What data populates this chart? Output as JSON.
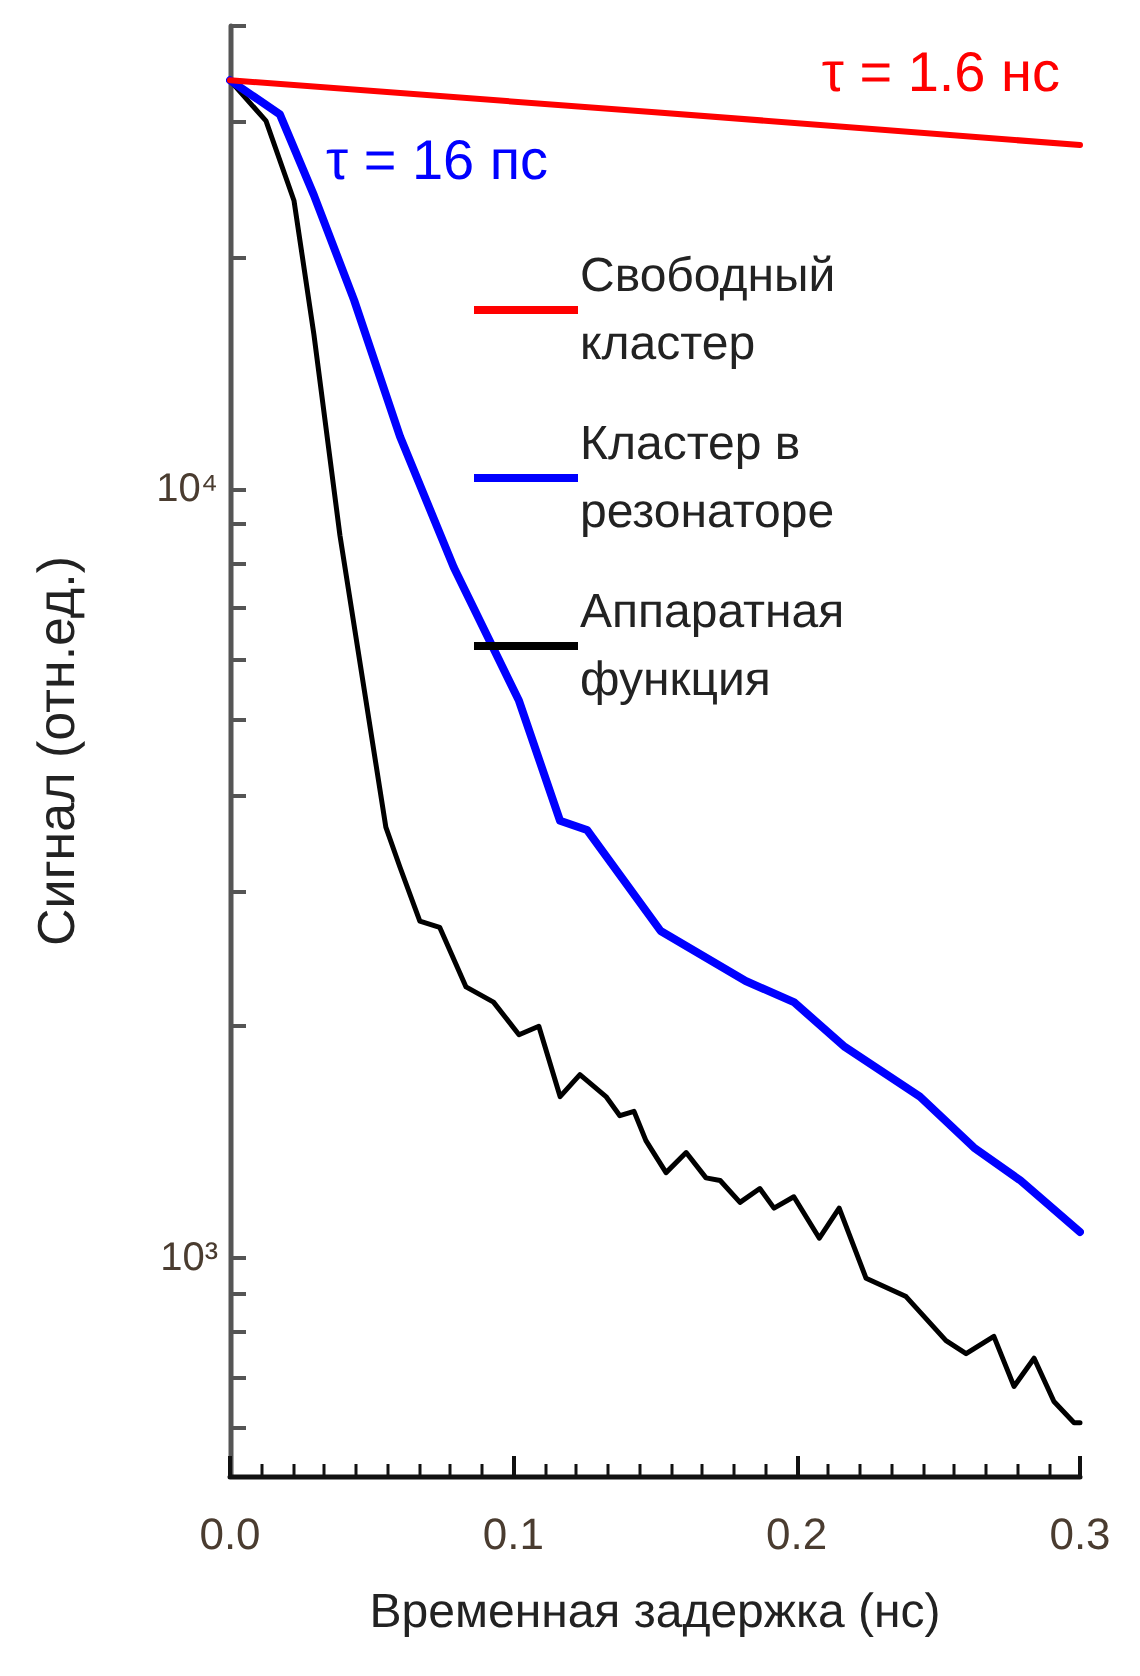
{
  "chart_data": {
    "type": "line",
    "xlabel": "Временная задержка (нс)",
    "ylabel": "Сигнал (отн.ед.)",
    "log": "y",
    "legend": "right",
    "grid": false,
    "marker": "none",
    "line_style": "solid",
    "xlim": [
      0,
      0.3
    ],
    "xticks": [
      {
        "value": 0,
        "label": "0.0"
      },
      0.1,
      0.2,
      0.3
    ],
    "ylim": [
      520,
      40000
    ],
    "yticks": [
      {
        "value": 600,
        "label": null
      },
      {
        "value": 700,
        "label": null
      },
      {
        "value": 800,
        "label": null
      },
      {
        "value": 900,
        "label": null
      },
      {
        "value": 1000,
        "label": "10³"
      },
      {
        "value": 2000,
        "label": null
      },
      {
        "value": 3000,
        "label": null
      },
      {
        "value": 4000,
        "label": null
      },
      {
        "value": 5000,
        "label": null
      },
      {
        "value": 6000,
        "label": null
      },
      {
        "value": 7000,
        "label": null
      },
      {
        "value": 8000,
        "label": null
      },
      {
        "value": 9000,
        "label": null
      },
      {
        "value": 10000,
        "label": "10⁴"
      },
      {
        "value": 20000,
        "label": null
      },
      {
        "value": 30000,
        "label": null
      },
      {
        "value": 40000,
        "label": null
      }
    ],
    "annotations": [
      "τ = 1.6 нс",
      "τ = 16 пс"
    ],
    "series": [
      {
        "name": "Свободный кластер",
        "color": "#ff0000",
        "x": [
          0,
          0.15,
          0.3
        ],
        "values": [
          34000,
          30900,
          28000
        ]
      },
      {
        "name": "Кластер в резонаторе",
        "color": "#0000ff",
        "x": [
          0,
          0.0176,
          0.0296,
          0.0438,
          0.06,
          0.079,
          0.102,
          0.1165,
          0.126,
          0.152,
          0.182,
          0.199,
          0.217,
          0.2435,
          0.2626,
          0.279,
          0.3
        ],
        "values": [
          34000,
          30700,
          24100,
          17600,
          11700,
          7900,
          5300,
          3700,
          3600,
          2660,
          2290,
          2150,
          1880,
          1620,
          1390,
          1260,
          1080
        ]
      },
      {
        "name": "Аппаратная функция",
        "color": "#000000",
        "x": [
          0,
          0.0127,
          0.0226,
          0.0296,
          0.0388,
          0.048,
          0.055,
          0.06,
          0.067,
          0.074,
          0.0833,
          0.093,
          0.102,
          0.109,
          0.1165,
          0.1235,
          0.1327,
          0.1376,
          0.1426,
          0.1468,
          0.1539,
          0.161,
          0.168,
          0.173,
          0.18,
          0.187,
          0.192,
          0.199,
          0.208,
          0.215,
          0.2245,
          0.2386,
          0.2527,
          0.2598,
          0.2696,
          0.2767,
          0.2838,
          0.2908,
          0.2979,
          0.3
        ],
        "values": [
          34000,
          30100,
          23700,
          15900,
          8700,
          5300,
          3630,
          3220,
          2740,
          2690,
          2250,
          2150,
          1950,
          2000,
          1620,
          1730,
          1620,
          1530,
          1550,
          1420,
          1290,
          1370,
          1270,
          1260,
          1180,
          1230,
          1160,
          1200,
          1060,
          1160,
          940,
          890,
          780,
          750,
          790,
          680,
          740,
          650,
          610,
          610
        ]
      }
    ]
  }
}
